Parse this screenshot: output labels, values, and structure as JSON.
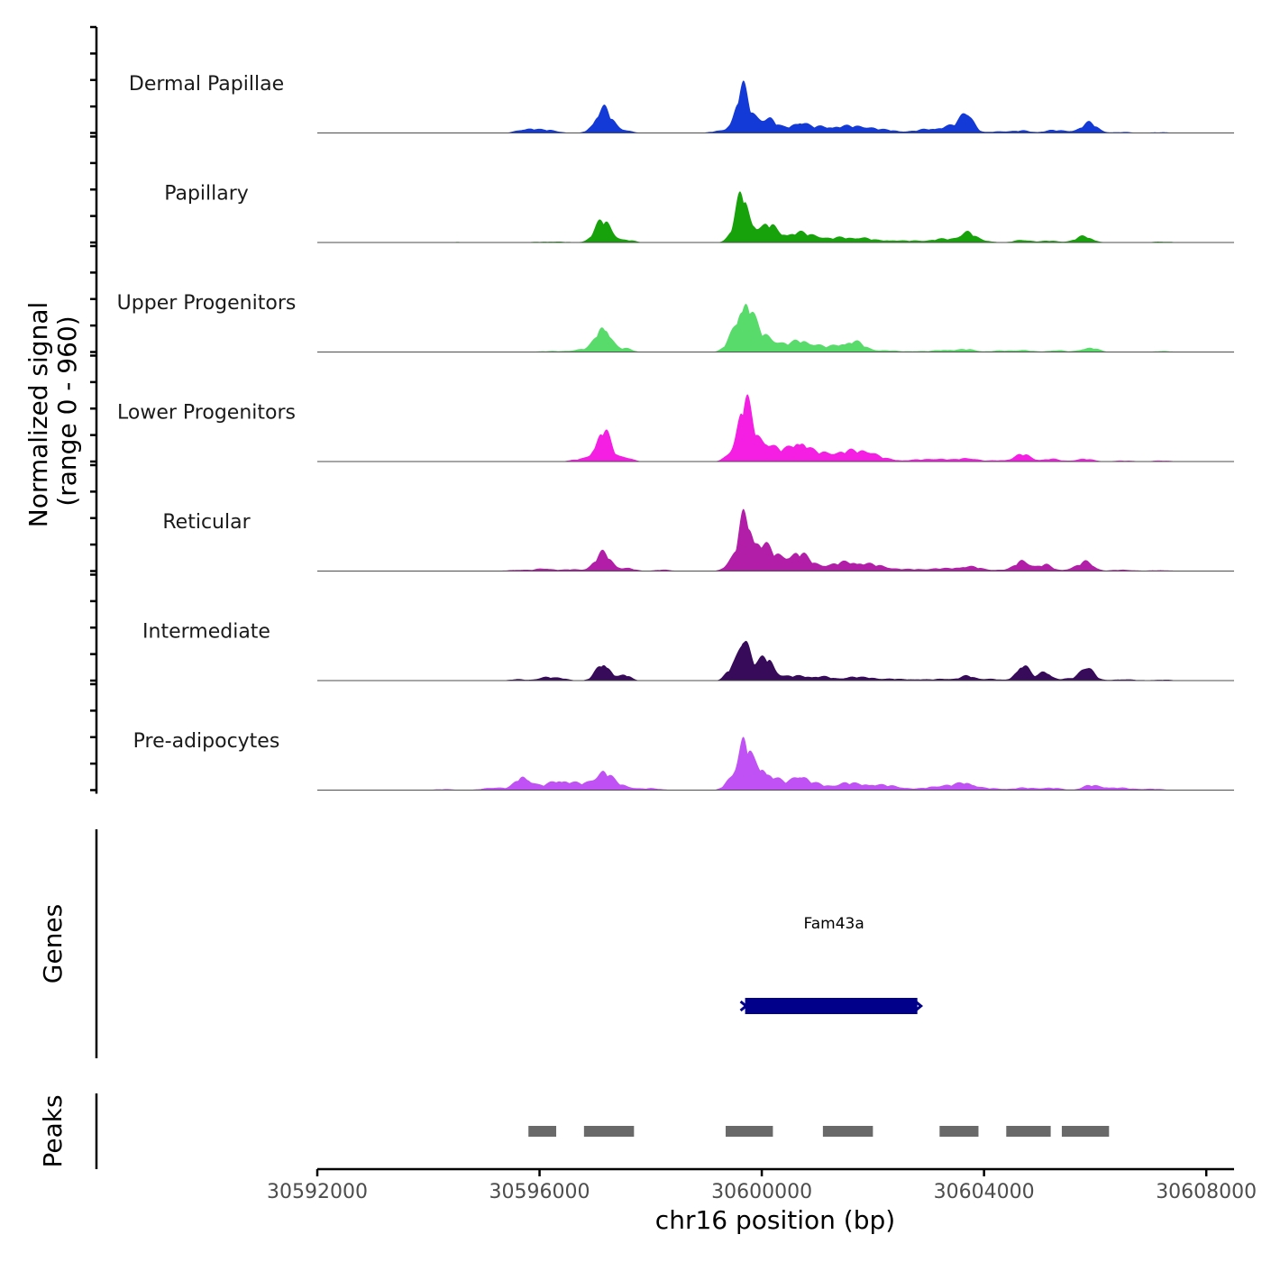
{
  "chart_data": {
    "type": "area",
    "title": "",
    "ylabel_line1": "Normalized signal",
    "ylabel_line2": "(range 0 - 960)",
    "ylim": [
      0,
      960
    ],
    "xlabel": "chr16 position (bp)",
    "xlim": [
      30592000,
      30608500
    ],
    "x_ticks": [
      30592000,
      30596000,
      30600000,
      30604000,
      30608000
    ],
    "x_tick_labels": [
      "30592000",
      "30596000",
      "30600000",
      "30604000",
      "30608000"
    ],
    "tracks": [
      {
        "name": "Dermal Papillae",
        "color": "#1339d6",
        "peaks": [
          [
            30595800,
            0.1,
            180
          ],
          [
            30596200,
            0.06,
            150
          ],
          [
            30597150,
            0.55,
            150
          ],
          [
            30597550,
            0.06,
            120
          ],
          [
            30599200,
            0.04,
            130
          ],
          [
            30599500,
            0.2,
            110
          ],
          [
            30599650,
            0.85,
            100
          ],
          [
            30599850,
            0.3,
            120
          ],
          [
            30600120,
            0.3,
            120
          ],
          [
            30600400,
            0.1,
            180
          ],
          [
            30600700,
            0.22,
            130
          ],
          [
            30601000,
            0.1,
            140
          ],
          [
            30601300,
            0.12,
            180
          ],
          [
            30601600,
            0.1,
            160
          ],
          [
            30601900,
            0.12,
            170
          ],
          [
            30602300,
            0.06,
            180
          ],
          [
            30602800,
            0.03,
            200
          ],
          [
            30603000,
            0.05,
            180
          ],
          [
            30603300,
            0.08,
            200
          ],
          [
            30603700,
            0.4,
            110
          ],
          [
            30603550,
            0.12,
            180
          ],
          [
            30604300,
            0.04,
            180
          ],
          [
            30604700,
            0.05,
            150
          ],
          [
            30605200,
            0.05,
            150
          ],
          [
            30605500,
            0.04,
            180
          ],
          [
            30605900,
            0.22,
            140
          ],
          [
            30606500,
            0.02,
            200
          ],
          [
            30607200,
            0.015,
            200
          ]
        ]
      },
      {
        "name": "Papillary",
        "color": "#17a20b",
        "peaks": [
          [
            30594500,
            0.01,
            400
          ],
          [
            30596200,
            0.02,
            300
          ],
          [
            30597150,
            0.5,
            150
          ],
          [
            30597600,
            0.05,
            120
          ],
          [
            30599500,
            0.2,
            110
          ],
          [
            30599650,
            0.95,
            100
          ],
          [
            30599850,
            0.3,
            120
          ],
          [
            30600130,
            0.35,
            120
          ],
          [
            30600400,
            0.15,
            160
          ],
          [
            30600700,
            0.18,
            150
          ],
          [
            30601000,
            0.12,
            150
          ],
          [
            30601400,
            0.1,
            180
          ],
          [
            30601800,
            0.1,
            180
          ],
          [
            30602300,
            0.05,
            200
          ],
          [
            30602800,
            0.04,
            200
          ],
          [
            30603200,
            0.06,
            150
          ],
          [
            30603450,
            0.05,
            150
          ],
          [
            30603700,
            0.22,
            130
          ],
          [
            30604000,
            0.04,
            150
          ],
          [
            30604700,
            0.06,
            150
          ],
          [
            30605200,
            0.04,
            160
          ],
          [
            30605800,
            0.14,
            150
          ],
          [
            30607200,
            0.02,
            200
          ]
        ]
      },
      {
        "name": "Upper Progenitors",
        "color": "#59db6b",
        "peaks": [
          [
            30596200,
            0.02,
            300
          ],
          [
            30596800,
            0.06,
            180
          ],
          [
            30597150,
            0.6,
            130
          ],
          [
            30597550,
            0.08,
            120
          ],
          [
            30599450,
            0.2,
            120
          ],
          [
            30599700,
            1.1,
            140
          ],
          [
            30600000,
            0.3,
            160
          ],
          [
            30600300,
            0.18,
            180
          ],
          [
            30600700,
            0.22,
            160
          ],
          [
            30601000,
            0.12,
            160
          ],
          [
            30601400,
            0.14,
            170
          ],
          [
            30601700,
            0.2,
            160
          ],
          [
            30602200,
            0.04,
            200
          ],
          [
            30602800,
            0.02,
            200
          ],
          [
            30603300,
            0.05,
            170
          ],
          [
            30603700,
            0.06,
            150
          ],
          [
            30604300,
            0.03,
            200
          ],
          [
            30604700,
            0.04,
            160
          ],
          [
            30605300,
            0.04,
            160
          ],
          [
            30605900,
            0.1,
            150
          ],
          [
            30607200,
            0.02,
            200
          ]
        ]
      },
      {
        "name": "Lower Progenitors",
        "color": "#f41fe3",
        "peaks": [
          [
            30594500,
            0.01,
            400
          ],
          [
            30596800,
            0.06,
            200
          ],
          [
            30597150,
            0.7,
            130
          ],
          [
            30597550,
            0.1,
            120
          ],
          [
            30599450,
            0.15,
            120
          ],
          [
            30599690,
            1.2,
            120
          ],
          [
            30599950,
            0.4,
            160
          ],
          [
            30600200,
            0.2,
            180
          ],
          [
            30600500,
            0.15,
            180
          ],
          [
            30600700,
            0.35,
            140
          ],
          [
            30601000,
            0.15,
            160
          ],
          [
            30601300,
            0.15,
            170
          ],
          [
            30601600,
            0.18,
            160
          ],
          [
            30601900,
            0.2,
            150
          ],
          [
            30602200,
            0.06,
            200
          ],
          [
            30602800,
            0.04,
            200
          ],
          [
            30603200,
            0.06,
            170
          ],
          [
            30603700,
            0.08,
            170
          ],
          [
            30604300,
            0.03,
            200
          ],
          [
            30604700,
            0.16,
            140
          ],
          [
            30605200,
            0.06,
            160
          ],
          [
            30605800,
            0.06,
            160
          ],
          [
            30606500,
            0.02,
            200
          ],
          [
            30607200,
            0.02,
            200
          ]
        ]
      },
      {
        "name": "Reticular",
        "color": "#b21ea8",
        "peaks": [
          [
            30595600,
            0.03,
            180
          ],
          [
            30596100,
            0.06,
            160
          ],
          [
            30596600,
            0.04,
            160
          ],
          [
            30597150,
            0.4,
            150
          ],
          [
            30597600,
            0.06,
            120
          ],
          [
            30598200,
            0.03,
            160
          ],
          [
            30599450,
            0.18,
            120
          ],
          [
            30599690,
            1.1,
            110
          ],
          [
            30599950,
            0.5,
            160
          ],
          [
            30600200,
            0.25,
            180
          ],
          [
            30600500,
            0.18,
            170
          ],
          [
            30600700,
            0.28,
            150
          ],
          [
            30601000,
            0.12,
            160
          ],
          [
            30601400,
            0.15,
            180
          ],
          [
            30601700,
            0.14,
            170
          ],
          [
            30602000,
            0.1,
            170
          ],
          [
            30602300,
            0.06,
            200
          ],
          [
            30602800,
            0.04,
            200
          ],
          [
            30603200,
            0.05,
            170
          ],
          [
            30603600,
            0.08,
            170
          ],
          [
            30603850,
            0.06,
            150
          ],
          [
            30604300,
            0.03,
            200
          ],
          [
            30604700,
            0.24,
            130
          ],
          [
            30605100,
            0.14,
            130
          ],
          [
            30605600,
            0.05,
            150
          ],
          [
            30605850,
            0.2,
            130
          ],
          [
            30606500,
            0.03,
            200
          ],
          [
            30607200,
            0.02,
            200
          ]
        ]
      },
      {
        "name": "Intermediate",
        "color": "#370a5a",
        "peaks": [
          [
            30595600,
            0.03,
            150
          ],
          [
            30596100,
            0.08,
            130
          ],
          [
            30596400,
            0.05,
            130
          ],
          [
            30597150,
            0.4,
            130
          ],
          [
            30597550,
            0.12,
            100
          ],
          [
            30599450,
            0.25,
            100
          ],
          [
            30599680,
            1.0,
            100
          ],
          [
            30599950,
            0.3,
            130
          ],
          [
            30600130,
            0.36,
            110
          ],
          [
            30600400,
            0.08,
            160
          ],
          [
            30600700,
            0.08,
            160
          ],
          [
            30601000,
            0.06,
            160
          ],
          [
            30601200,
            0.05,
            150
          ],
          [
            30601600,
            0.08,
            130
          ],
          [
            30601900,
            0.06,
            150
          ],
          [
            30602300,
            0.04,
            200
          ],
          [
            30602800,
            0.03,
            200
          ],
          [
            30603300,
            0.04,
            170
          ],
          [
            30603700,
            0.1,
            130
          ],
          [
            30604100,
            0.04,
            170
          ],
          [
            30604700,
            0.36,
            120
          ],
          [
            30605100,
            0.2,
            110
          ],
          [
            30605500,
            0.04,
            150
          ],
          [
            30605850,
            0.33,
            120
          ],
          [
            30606500,
            0.03,
            200
          ],
          [
            30607200,
            0.02,
            200
          ]
        ]
      },
      {
        "name": "Pre-adipocytes",
        "color": "#c051f4",
        "peaks": [
          [
            30594300,
            0.02,
            200
          ],
          [
            30595200,
            0.06,
            200
          ],
          [
            30595700,
            0.3,
            130
          ],
          [
            30596000,
            0.08,
            160
          ],
          [
            30596300,
            0.15,
            140
          ],
          [
            30596500,
            0.12,
            150
          ],
          [
            30596800,
            0.12,
            170
          ],
          [
            30597150,
            0.4,
            150
          ],
          [
            30597500,
            0.1,
            150
          ],
          [
            30598000,
            0.04,
            200
          ],
          [
            30599450,
            0.25,
            110
          ],
          [
            30599680,
            1.0,
            110
          ],
          [
            30599950,
            0.45,
            140
          ],
          [
            30600200,
            0.2,
            150
          ],
          [
            30600450,
            0.1,
            160
          ],
          [
            30600700,
            0.3,
            130
          ],
          [
            30601000,
            0.12,
            150
          ],
          [
            30601400,
            0.1,
            170
          ],
          [
            30601600,
            0.09,
            160
          ],
          [
            30601900,
            0.1,
            160
          ],
          [
            30602200,
            0.08,
            180
          ],
          [
            30602500,
            0.05,
            200
          ],
          [
            30603100,
            0.06,
            200
          ],
          [
            30603400,
            0.08,
            200
          ],
          [
            30603700,
            0.14,
            150
          ],
          [
            30604100,
            0.04,
            200
          ],
          [
            30604700,
            0.05,
            200
          ],
          [
            30605200,
            0.05,
            200
          ],
          [
            30605900,
            0.1,
            140
          ],
          [
            30606200,
            0.05,
            160
          ],
          [
            30606500,
            0.04,
            180
          ],
          [
            30607000,
            0.03,
            200
          ]
        ]
      }
    ],
    "genes": [
      {
        "name": "Fam43a",
        "start": 30599700,
        "end": 30602800,
        "strand": "+",
        "color": "#00008b"
      }
    ],
    "peaks_track": [
      [
        30595800,
        30596300
      ],
      [
        30596800,
        30597700
      ],
      [
        30599350,
        30600200
      ],
      [
        30601100,
        30602000
      ],
      [
        30603200,
        30603900
      ],
      [
        30604400,
        30605200
      ],
      [
        30605400,
        30606250
      ]
    ],
    "panel_labels": {
      "genes": "Genes",
      "peaks": "Peaks"
    },
    "peak_color": "#696969"
  }
}
